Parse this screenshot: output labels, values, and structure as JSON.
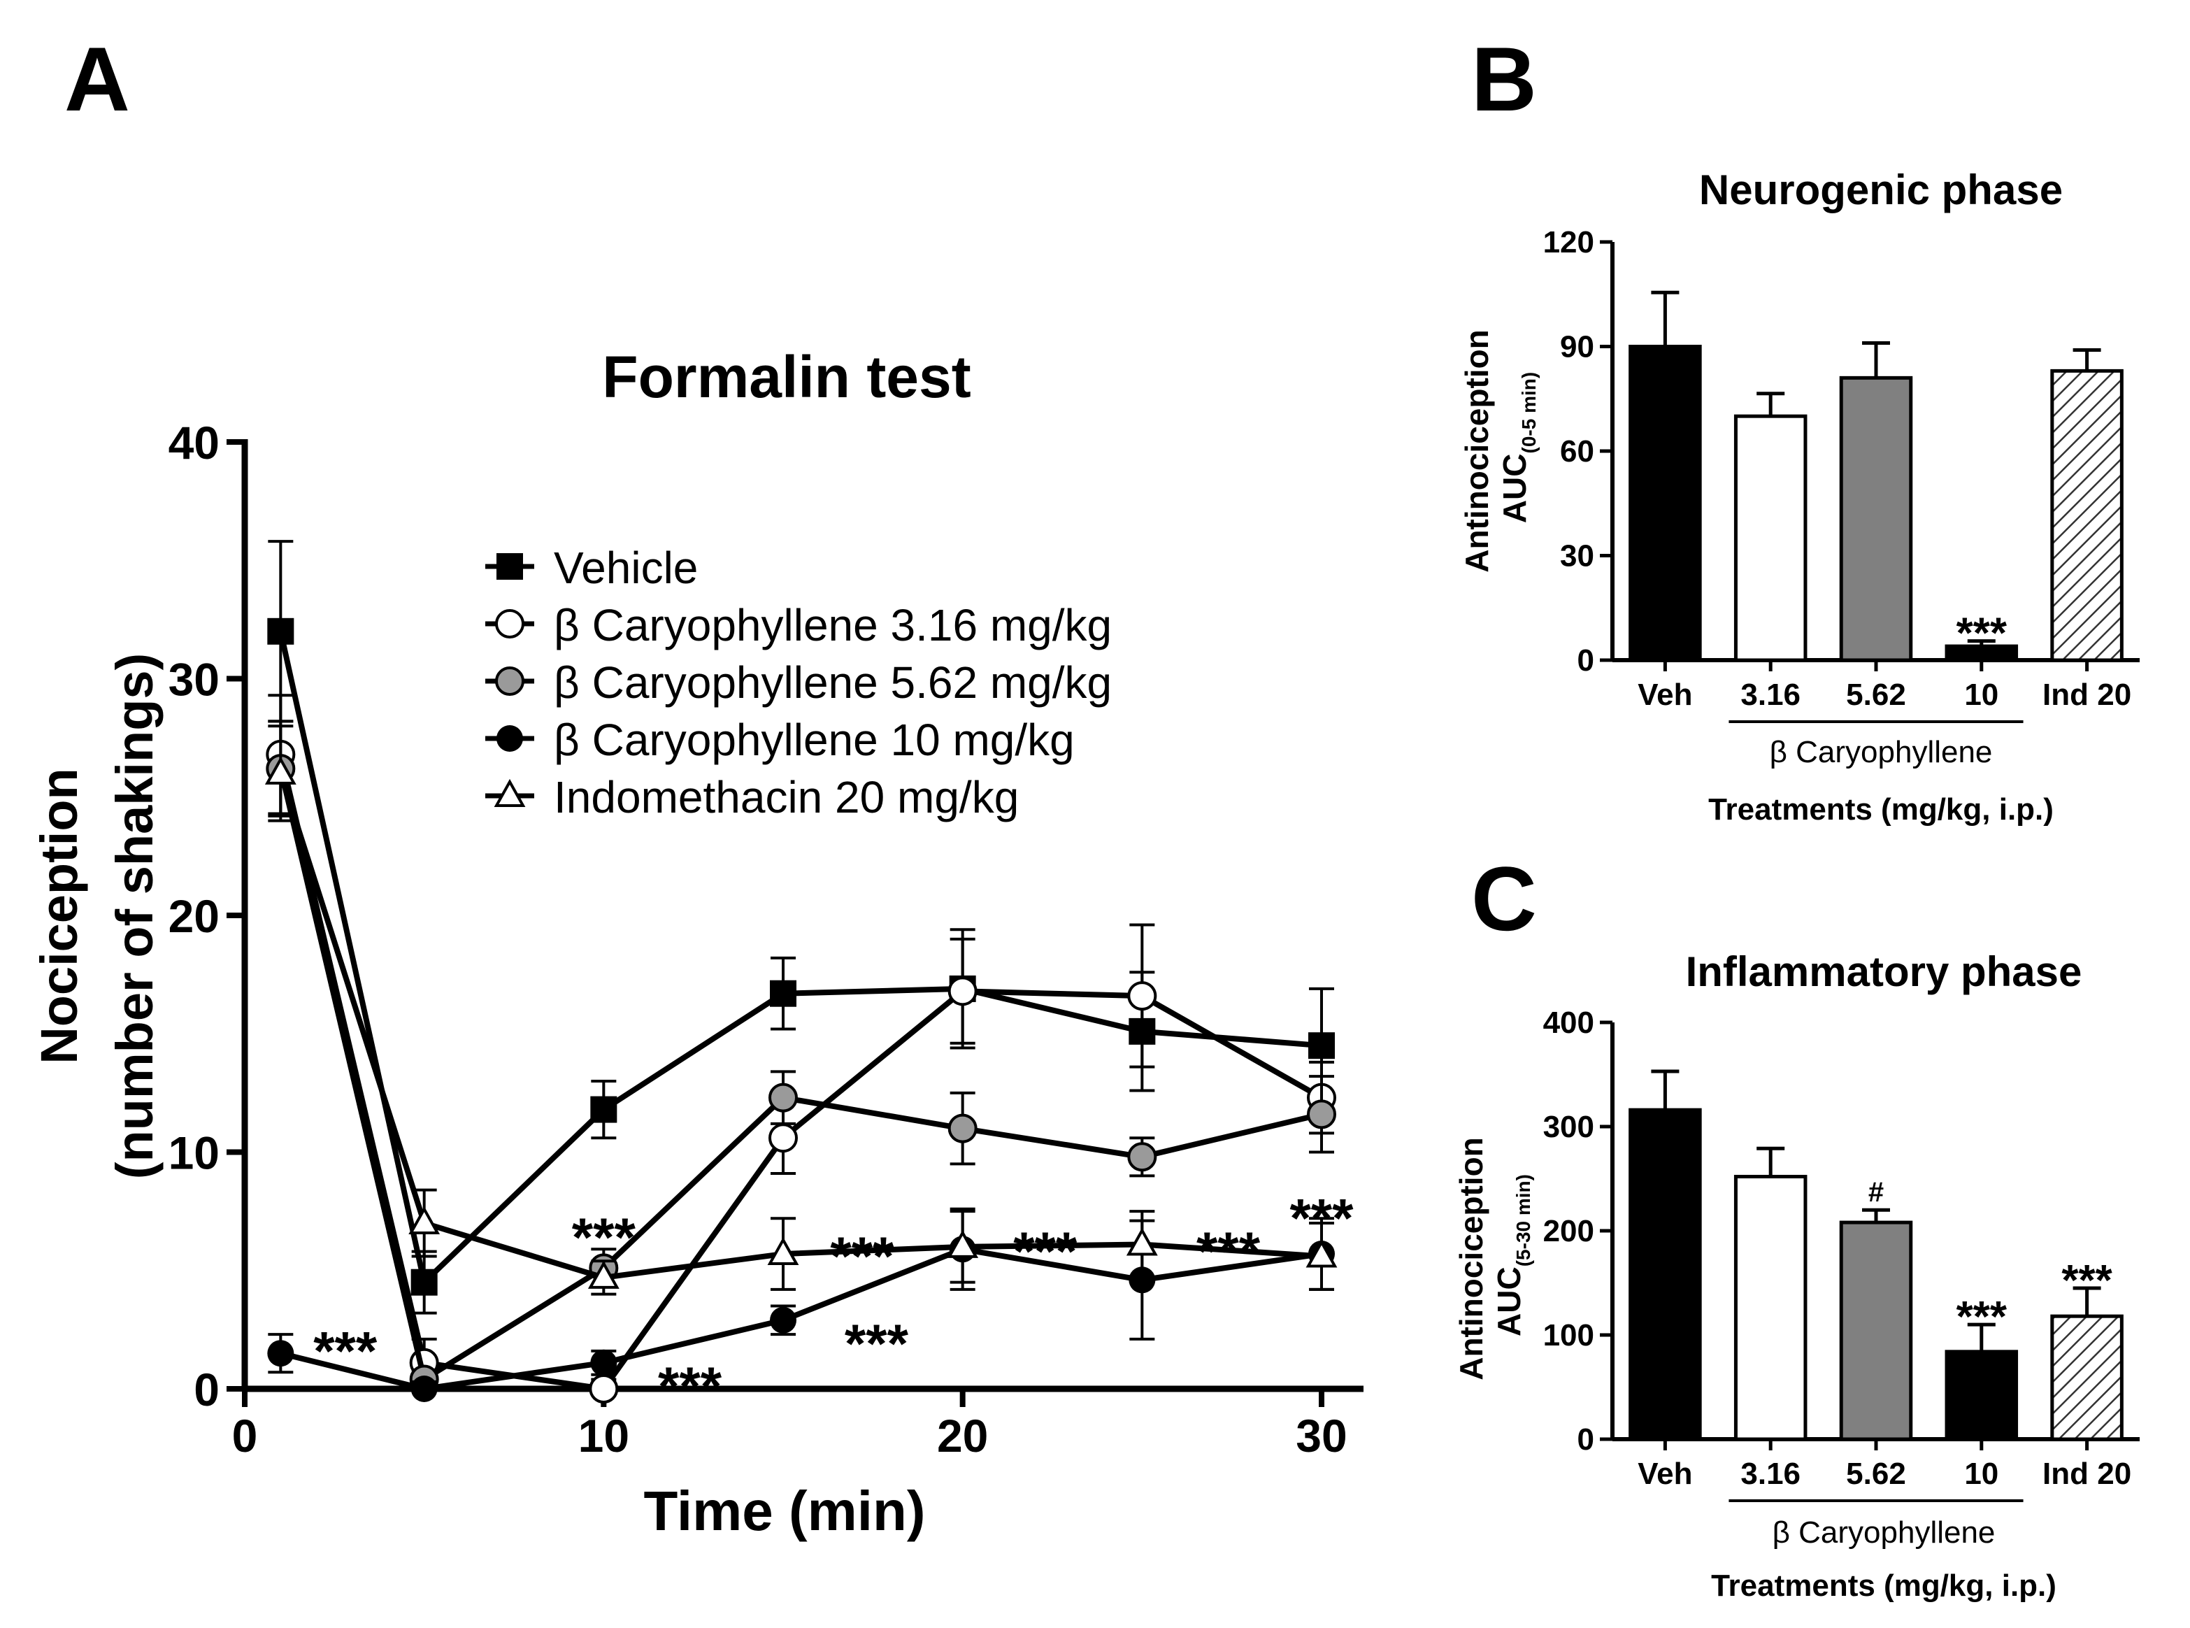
{
  "panel_labels": {
    "a": "A",
    "b": "B",
    "c": "C"
  },
  "chart_data": [
    {
      "id": "A",
      "type": "line",
      "title": "Formalin test",
      "xlabel": "Time (min)",
      "ylabel_line1": "Nociception",
      "ylabel_line2": "(number of shakings)",
      "xlim": [
        0,
        31
      ],
      "ylim": [
        0,
        40
      ],
      "xticks": [
        0,
        10,
        20,
        30
      ],
      "yticks": [
        0,
        10,
        20,
        30,
        40
      ],
      "x": [
        1,
        5,
        10,
        15,
        20,
        25,
        30
      ],
      "series": [
        {
          "name": "Vehicle",
          "marker": "square-filled",
          "values": [
            32,
            4.5,
            11.8,
            16.7,
            16.9,
            15.1,
            14.5
          ],
          "errors": [
            3.8,
            1.3,
            1.2,
            1.5,
            2.5,
            2.5,
            2.4
          ]
        },
        {
          "name": "β Caryophyllene 3.16 mg/kg",
          "marker": "circle-open",
          "values": [
            26.8,
            1.1,
            0,
            10.6,
            16.8,
            16.6,
            12.3
          ],
          "errors": [
            2.5,
            1.0,
            0.4,
            1.5,
            2.2,
            3.0,
            1.5
          ]
        },
        {
          "name": "β Caryophyllene 5.62 mg/kg",
          "marker": "circle-gray",
          "values": [
            26.2,
            0.4,
            5.1,
            12.3,
            11.0,
            9.8,
            11.6
          ],
          "errors": [
            2.0,
            0.4,
            0.8,
            1.1,
            1.5,
            0.8,
            1.6
          ]
        },
        {
          "name": "β Caryophyllene 10 mg/kg",
          "marker": "circle-filled",
          "values": [
            1.5,
            0,
            1.1,
            2.9,
            5.9,
            4.6,
            5.7
          ],
          "errors": [
            0.8,
            0.3,
            0.5,
            0.6,
            1.7,
            2.5,
            1.5
          ]
        },
        {
          "name": "Indomethacin 20 mg/kg",
          "marker": "triangle-open",
          "values": [
            26.0,
            7.0,
            4.7,
            5.7,
            6.0,
            6.1,
            5.6
          ],
          "errors": [
            2.0,
            1.4,
            0.7,
            1.5,
            1.5,
            1.4,
            1.4
          ]
        }
      ],
      "annotations": [
        {
          "text": "***",
          "x": 2.8,
          "y": 2.0
        },
        {
          "text": "***",
          "x": 12.4,
          "y": 0.5
        },
        {
          "text": "***",
          "x": 17.6,
          "y": 2.3
        },
        {
          "text": "***",
          "x": 10.0,
          "y": 6.8
        },
        {
          "text": "***",
          "x": 17.2,
          "y": 6.0
        },
        {
          "text": "***",
          "x": 22.3,
          "y": 6.2
        },
        {
          "text": "***",
          "x": 27.4,
          "y": 6.2
        },
        {
          "text": "***",
          "x": 30.0,
          "y": 7.6
        }
      ]
    },
    {
      "id": "B",
      "type": "bar",
      "title": "Neurogenic phase",
      "ylabel_line1": "Antinociception",
      "ylabel_line2": "AUC",
      "ylabel_sub": "(0-5 min)",
      "xlabel": "Treatments (mg/kg, i.p.)",
      "group_label": "β Caryophyllene",
      "categories": [
        "Veh",
        "3.16",
        "5.62",
        "10",
        "Ind 20"
      ],
      "values": [
        90,
        70,
        81,
        4,
        83
      ],
      "errors": [
        15.5,
        6.5,
        10,
        1.5,
        6
      ],
      "fills": [
        "#000000",
        "#ffffff",
        "#808080",
        "#000000",
        "hatch"
      ],
      "ylim": [
        0,
        120
      ],
      "yticks": [
        0,
        30,
        60,
        90,
        120
      ],
      "annotations": [
        {
          "index": 3,
          "text": "***"
        }
      ]
    },
    {
      "id": "C",
      "type": "bar",
      "title": "Inflammatory phase",
      "ylabel_line1": "Antinociception",
      "ylabel_line2": "AUC",
      "ylabel_sub": "(5-30 min)",
      "xlabel": "Treatments (mg/kg, i.p.)",
      "group_label": "β Caryophyllene",
      "categories": [
        "Veh",
        "3.16",
        "5.62",
        "10",
        "Ind 20"
      ],
      "values": [
        316,
        252,
        208,
        84,
        118
      ],
      "errors": [
        37,
        27,
        12,
        26,
        27
      ],
      "fills": [
        "#000000",
        "#ffffff",
        "#808080",
        "#000000",
        "hatch"
      ],
      "ylim": [
        0,
        400
      ],
      "yticks": [
        0,
        100,
        200,
        300,
        400
      ],
      "annotations": [
        {
          "index": 2,
          "text": "#"
        },
        {
          "index": 3,
          "text": "***"
        },
        {
          "index": 4,
          "text": "***"
        }
      ]
    }
  ]
}
